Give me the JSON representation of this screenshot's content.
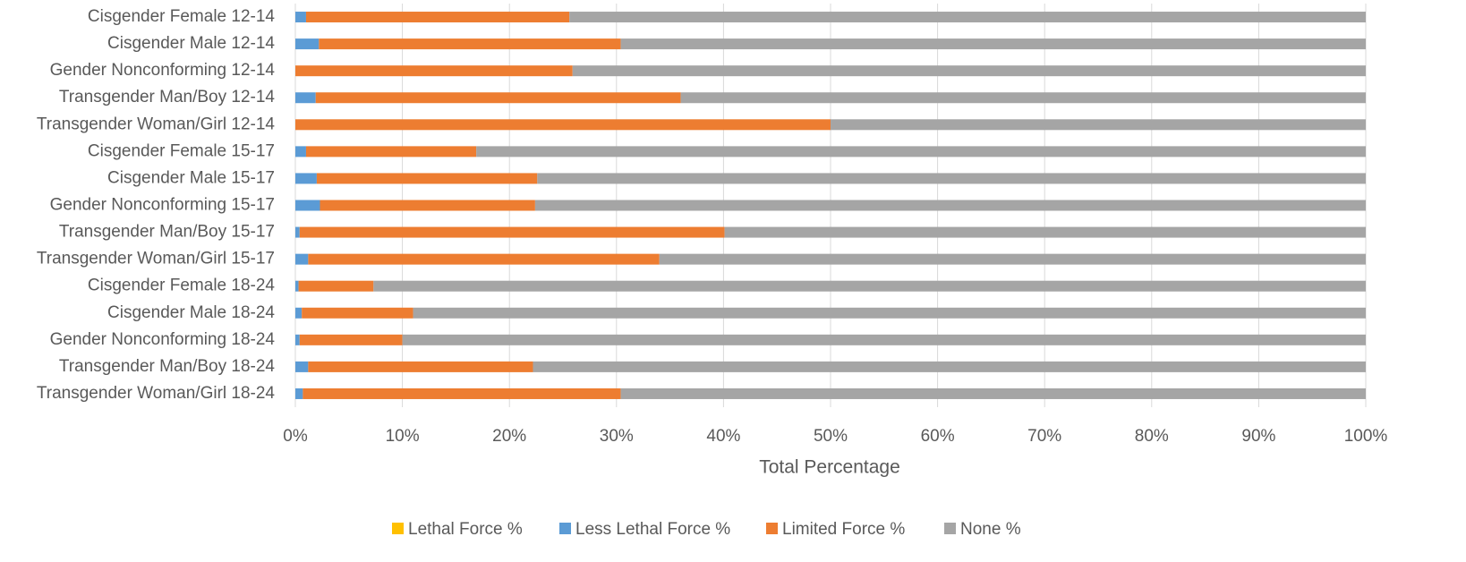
{
  "chart_data": {
    "type": "stacked-bar-horizontal",
    "categories": [
      "Cisgender Female 12-14",
      "Cisgender Male 12-14",
      "Gender Nonconforming 12-14",
      "Transgender Man/Boy 12-14",
      "Transgender Woman/Girl 12-14",
      "Cisgender Female 15-17",
      "Cisgender Male 15-17",
      "Gender Nonconforming 15-17",
      "Transgender Man/Boy 15-17",
      "Transgender Woman/Girl 15-17",
      "Cisgender Female 18-24",
      "Cisgender Male 18-24",
      "Gender Nonconforming 18-24",
      "Transgender Man/Boy 18-24",
      "Transgender Woman/Girl 18-24"
    ],
    "series": [
      {
        "name": "Lethal Force %",
        "color": "#FFC000",
        "values": [
          0,
          0,
          0,
          0,
          0,
          0,
          0,
          0,
          0,
          0,
          0,
          0,
          0,
          0,
          0
        ]
      },
      {
        "name": "Less Lethal Force %",
        "color": "#5B9BD5",
        "values": [
          1.0,
          2.2,
          0,
          1.9,
          0,
          1.0,
          2.0,
          2.3,
          0.4,
          1.2,
          0.3,
          0.6,
          0.4,
          1.2,
          0.7
        ]
      },
      {
        "name": "Limited Force %",
        "color": "#ED7D31",
        "values": [
          24.6,
          28.2,
          25.9,
          34.1,
          50.0,
          15.9,
          20.6,
          20.1,
          39.7,
          32.8,
          7.0,
          10.4,
          9.6,
          21.0,
          29.7
        ]
      },
      {
        "name": "None %",
        "color": "#A5A5A5",
        "values": [
          74.4,
          69.6,
          74.1,
          64.0,
          50.0,
          83.1,
          77.4,
          77.6,
          59.9,
          66.0,
          92.7,
          89.0,
          90.0,
          77.8,
          69.6
        ]
      }
    ],
    "x_label": "Total Percentage",
    "xlim": [
      0,
      100
    ],
    "xticks": [
      {
        "value": 0,
        "label": "0%"
      },
      {
        "value": 10,
        "label": "10%"
      },
      {
        "value": 20,
        "label": "20%"
      },
      {
        "value": 30,
        "label": "30%"
      },
      {
        "value": 40,
        "label": "40%"
      },
      {
        "value": 50,
        "label": "50%"
      },
      {
        "value": 60,
        "label": "60%"
      },
      {
        "value": 70,
        "label": "70%"
      },
      {
        "value": 80,
        "label": "80%"
      },
      {
        "value": 90,
        "label": "90%"
      },
      {
        "value": 100,
        "label": "100%"
      }
    ],
    "grid": true,
    "legend": "bottom"
  }
}
